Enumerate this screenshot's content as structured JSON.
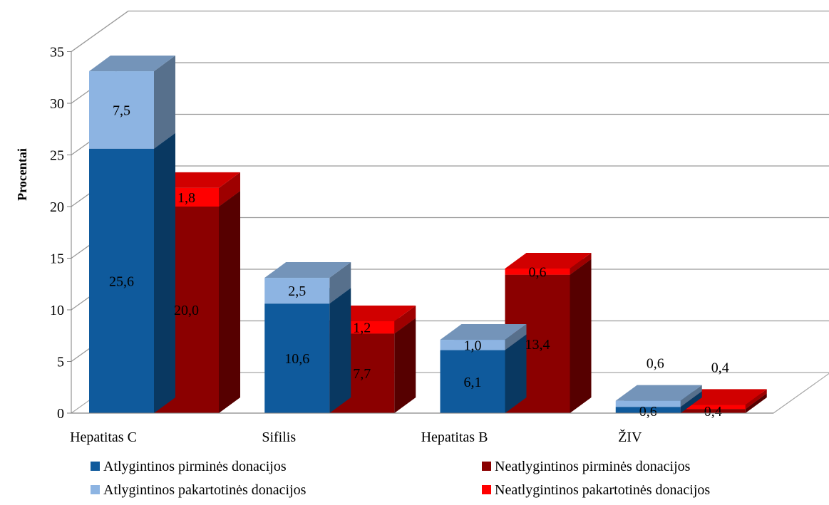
{
  "chart_data": {
    "type": "bar",
    "stacked": true,
    "style": "3d-clustered-stacked-columns",
    "ylabel": "Procentai",
    "ylim": [
      0,
      35
    ],
    "yticks": [
      "0",
      "5",
      "10",
      "15",
      "20",
      "25",
      "30",
      "35"
    ],
    "grid": true,
    "legend_position": "bottom",
    "categories": [
      "Hepatitas C",
      "Sifilis",
      "Hepatitas B",
      "ŽIV"
    ],
    "series": [
      {
        "name": "Atlygintinos pirminės donacijos",
        "group": "Atlygintinos",
        "values": [
          25.6,
          10.6,
          6.1,
          0.6
        ],
        "labels": [
          "25,6",
          "10,6",
          "6,1",
          "0,6"
        ],
        "color": "#0f5a9c"
      },
      {
        "name": "Atlygintinos pakartotinės donacijos",
        "group": "Atlygintinos",
        "values": [
          7.5,
          2.5,
          1.0,
          0.6
        ],
        "labels": [
          "7,5",
          "2,5",
          "1,0",
          "0,6"
        ],
        "color": "#8db4e2"
      },
      {
        "name": "Neatlygintinos pirminės donacijos",
        "group": "Neatlygintinos",
        "values": [
          20.0,
          7.7,
          13.4,
          0.4
        ],
        "labels": [
          "20,0",
          "7,7",
          "13,4",
          "0,4"
        ],
        "color": "#8b0000"
      },
      {
        "name": "Neatlygintinos pakartotinės donacijos",
        "group": "Neatlygintinos",
        "values": [
          1.8,
          1.2,
          0.6,
          0.4
        ],
        "labels": [
          "1,8",
          "1,2",
          "0,6",
          "0,4"
        ],
        "color": "#ff0000"
      }
    ],
    "legend": [
      {
        "label": "Atlygintinos pirminės donacijos",
        "color": "#0f5a9c"
      },
      {
        "label": "Neatlygintinos pirminės donacijos",
        "color": "#8b0000"
      },
      {
        "label": "Atlygintinos pakartotinės donacijos",
        "color": "#8db4e2"
      },
      {
        "label": "Neatlygintinos pakartotinės donacijos",
        "color": "#ff0000"
      }
    ]
  }
}
